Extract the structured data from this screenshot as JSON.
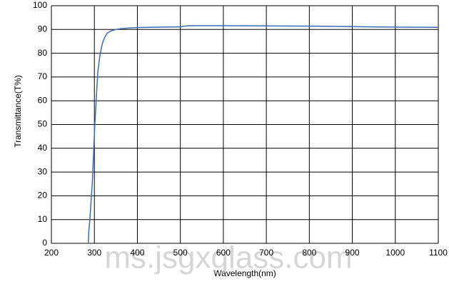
{
  "chart_data": {
    "type": "line",
    "x_label": "Wavelength(nm)",
    "y_label": "Transmittance(T%)",
    "annotation": "ms.jsgxglass.com",
    "xlim": [
      200,
      1100
    ],
    "xticks": [
      200,
      300,
      400,
      500,
      600,
      700,
      800,
      900,
      1000,
      1100
    ],
    "ylim": [
      0,
      100
    ],
    "yticks": [
      0,
      10,
      20,
      30,
      40,
      50,
      60,
      70,
      80,
      90,
      100
    ],
    "grid": true,
    "series": [
      {
        "color": "#3b6cb7",
        "x": [
          286,
          287,
          289,
          291,
          293,
          295,
          297,
          299,
          301,
          303,
          305,
          308,
          312,
          316,
          320,
          325,
          330,
          340,
          350,
          360,
          380,
          400,
          450,
          500,
          510,
          520,
          600,
          700,
          800,
          900,
          1000,
          1100
        ],
        "values": [
          0,
          5,
          9,
          14,
          20,
          25,
          33,
          42,
          50,
          56,
          63,
          72,
          78,
          82,
          85,
          87,
          88.5,
          89.5,
          90,
          90.3,
          90.6,
          90.8,
          91,
          91.1,
          91.4,
          91.6,
          91.6,
          91.5,
          91.4,
          91.2,
          91,
          90.9
        ]
      }
    ]
  }
}
